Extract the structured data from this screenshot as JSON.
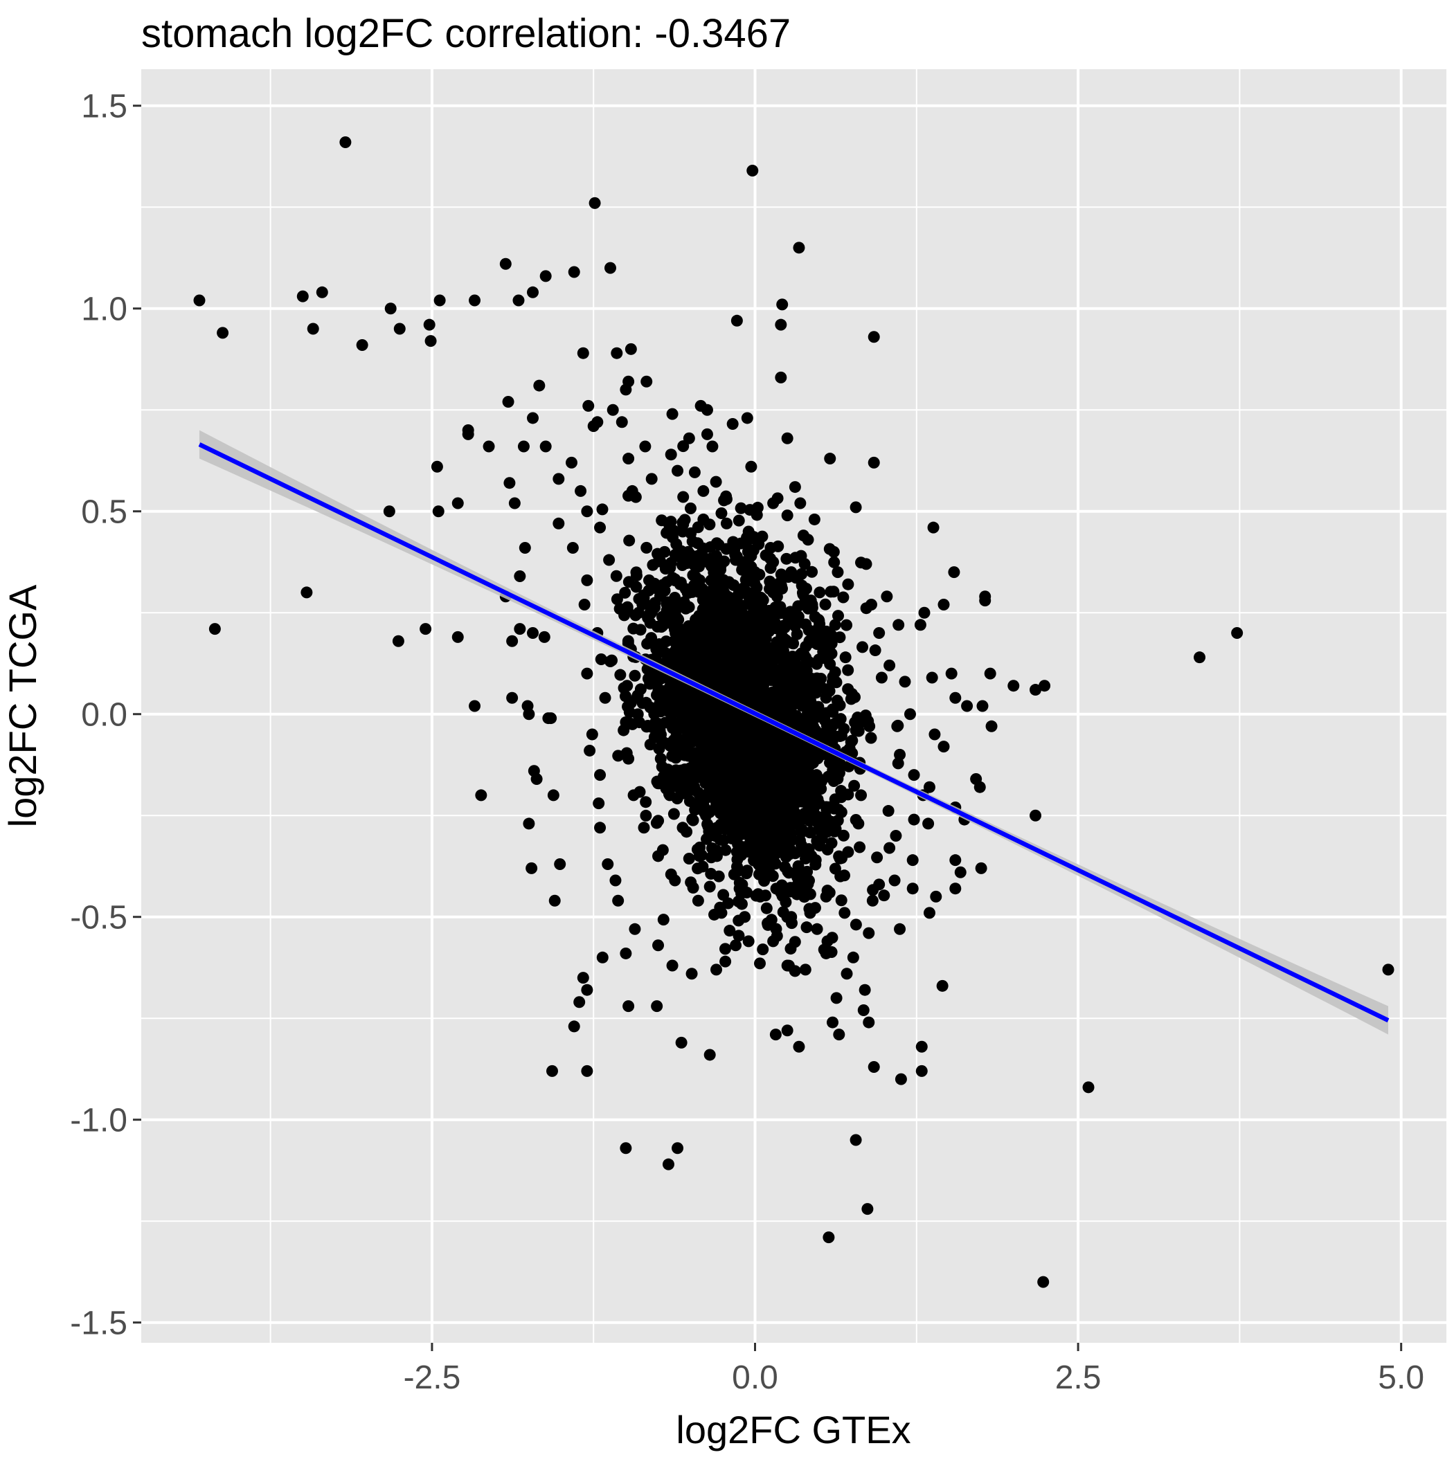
{
  "chart_data": {
    "type": "scatter",
    "title": "stomach log2FC correlation: -0.3467",
    "xlabel": "log2FC GTEx",
    "ylabel": "log2FC TCGA",
    "xlim": [
      -4.75,
      5.35
    ],
    "ylim": [
      -1.55,
      1.59
    ],
    "x_ticks": [
      -2.5,
      0.0,
      2.5,
      5.0
    ],
    "x_tick_labels": [
      "-2.5",
      "0.0",
      "2.5",
      "5.0"
    ],
    "y_ticks": [
      -1.5,
      -1.0,
      -0.5,
      0.0,
      0.5,
      1.0,
      1.5
    ],
    "y_tick_labels": [
      "-1.5",
      "-1.0",
      "-0.5",
      "0.0",
      "0.5",
      "1.0",
      "1.5"
    ],
    "grid": true,
    "colors": {
      "panel": "#e6e6e6",
      "grid": "#ffffff",
      "points": "#000000",
      "fit_line": "#0000ff",
      "ci_band": "#bfbfbf"
    },
    "regression": {
      "x_start": -4.3,
      "y_start": 0.665,
      "x_end": 4.9,
      "y_end": -0.755,
      "ci_halfwidth_end": 0.035
    },
    "points": [
      [
        -4.3,
        1.02
      ],
      [
        -4.12,
        0.94
      ],
      [
        -4.18,
        0.21
      ],
      [
        -3.5,
        1.03
      ],
      [
        -3.42,
        0.95
      ],
      [
        -3.35,
        1.04
      ],
      [
        -3.47,
        0.3
      ],
      [
        -3.17,
        1.41
      ],
      [
        -3.04,
        0.91
      ],
      [
        -2.82,
        1.0
      ],
      [
        -2.75,
        0.95
      ],
      [
        -2.52,
        0.96
      ],
      [
        -2.51,
        0.92
      ],
      [
        -2.44,
        1.02
      ],
      [
        -2.83,
        0.5
      ],
      [
        -2.76,
        0.18
      ],
      [
        -2.55,
        0.21
      ],
      [
        -2.46,
        0.61
      ],
      [
        -2.45,
        0.5
      ],
      [
        -2.3,
        0.52
      ],
      [
        -2.3,
        0.19
      ],
      [
        -2.22,
        0.7
      ],
      [
        -2.22,
        0.69
      ],
      [
        -2.17,
        1.02
      ],
      [
        -2.17,
        0.02
      ],
      [
        -2.06,
        0.66
      ],
      [
        -2.12,
        -0.2
      ],
      [
        -1.93,
        1.11
      ],
      [
        -1.83,
        1.02
      ],
      [
        -1.72,
        1.04
      ],
      [
        -1.62,
        1.08
      ],
      [
        -1.4,
        1.09
      ],
      [
        -1.24,
        1.26
      ],
      [
        -1.12,
        1.1
      ],
      [
        -1.33,
        0.89
      ],
      [
        -1.07,
        0.89
      ],
      [
        -0.96,
        0.9
      ],
      [
        -0.98,
        0.82
      ],
      [
        -0.84,
        0.82
      ],
      [
        -1.0,
        0.8
      ],
      [
        -0.02,
        1.34
      ],
      [
        0.34,
        1.15
      ],
      [
        0.21,
        1.01
      ],
      [
        -0.14,
        0.97
      ],
      [
        0.2,
        0.96
      ],
      [
        0.92,
        0.93
      ],
      [
        0.2,
        0.83
      ],
      [
        -0.06,
        0.73
      ],
      [
        0.25,
        0.68
      ],
      [
        0.58,
        0.63
      ],
      [
        0.92,
        0.62
      ],
      [
        0.78,
        0.51
      ],
      [
        1.38,
        0.46
      ],
      [
        1.54,
        0.35
      ],
      [
        1.78,
        0.29
      ],
      [
        1.78,
        0.28
      ],
      [
        1.31,
        0.25
      ],
      [
        1.46,
        0.27
      ],
      [
        1.11,
        0.22
      ],
      [
        1.28,
        0.22
      ],
      [
        1.82,
        0.1
      ],
      [
        2.0,
        0.07
      ],
      [
        2.17,
        0.06
      ],
      [
        2.24,
        0.07
      ],
      [
        1.76,
        0.02
      ],
      [
        1.83,
        -0.03
      ],
      [
        1.55,
        0.04
      ],
      [
        1.64,
        0.02
      ],
      [
        1.52,
        0.1
      ],
      [
        1.37,
        0.09
      ],
      [
        1.39,
        -0.05
      ],
      [
        1.46,
        -0.08
      ],
      [
        1.71,
        -0.16
      ],
      [
        1.74,
        -0.18
      ],
      [
        1.55,
        -0.23
      ],
      [
        1.62,
        -0.26
      ],
      [
        1.75,
        -0.38
      ],
      [
        1.55,
        -0.36
      ],
      [
        1.59,
        -0.39
      ],
      [
        1.55,
        -0.43
      ],
      [
        1.4,
        -0.45
      ],
      [
        1.35,
        -0.49
      ],
      [
        1.22,
        -0.43
      ],
      [
        1.12,
        -0.53
      ],
      [
        1.45,
        -0.67
      ],
      [
        2.17,
        -0.25
      ],
      [
        2.58,
        -0.92
      ],
      [
        3.44,
        0.14
      ],
      [
        3.73,
        0.2
      ],
      [
        4.9,
        -0.63
      ],
      [
        1.29,
        -0.82
      ],
      [
        1.29,
        -0.88
      ],
      [
        1.13,
        -0.9
      ],
      [
        0.92,
        -0.87
      ],
      [
        0.85,
        -0.68
      ],
      [
        0.84,
        -0.73
      ],
      [
        0.88,
        -0.76
      ],
      [
        0.63,
        -0.7
      ],
      [
        0.6,
        -0.76
      ],
      [
        0.65,
        -0.79
      ],
      [
        0.34,
        -0.82
      ],
      [
        0.25,
        -0.78
      ],
      [
        0.16,
        -0.79
      ],
      [
        -0.35,
        -0.84
      ],
      [
        -0.57,
        -0.81
      ],
      [
        -0.76,
        -0.72
      ],
      [
        -0.98,
        -0.72
      ],
      [
        -1.4,
        -0.77
      ],
      [
        -1.57,
        -0.88
      ],
      [
        -1.3,
        -0.88
      ],
      [
        -1.33,
        -0.65
      ],
      [
        -1.36,
        -0.71
      ],
      [
        -1.3,
        -0.68
      ],
      [
        -1.18,
        -0.6
      ],
      [
        -1.0,
        -0.59
      ],
      [
        -1.0,
        -1.07
      ],
      [
        -0.6,
        -1.07
      ],
      [
        -0.67,
        -1.11
      ],
      [
        0.78,
        -1.05
      ],
      [
        0.87,
        -1.22
      ],
      [
        0.57,
        -1.29
      ],
      [
        2.23,
        -1.4
      ],
      [
        -1.55,
        -0.46
      ],
      [
        -1.51,
        -0.37
      ],
      [
        -1.73,
        -0.38
      ],
      [
        -1.56,
        -0.2
      ],
      [
        -1.71,
        -0.14
      ],
      [
        -1.69,
        -0.16
      ],
      [
        -1.75,
        -0.27
      ],
      [
        -1.75,
        0.0
      ],
      [
        -1.88,
        0.04
      ],
      [
        -1.76,
        0.02
      ],
      [
        -1.6,
        -0.01
      ],
      [
        -1.58,
        -0.01
      ],
      [
        -1.26,
        -0.05
      ],
      [
        -1.3,
        0.1
      ],
      [
        -1.88,
        0.18
      ],
      [
        -1.82,
        0.21
      ],
      [
        -1.72,
        0.2
      ],
      [
        -1.63,
        0.19
      ],
      [
        -1.93,
        0.29
      ],
      [
        -1.82,
        0.34
      ],
      [
        -1.78,
        0.41
      ],
      [
        -1.9,
        0.57
      ],
      [
        -1.86,
        0.52
      ],
      [
        -1.91,
        0.77
      ],
      [
        -1.67,
        0.81
      ],
      [
        -1.72,
        0.73
      ],
      [
        -1.79,
        0.66
      ],
      [
        -1.62,
        0.66
      ],
      [
        -1.29,
        0.76
      ],
      [
        -1.22,
        0.72
      ],
      [
        -1.25,
        0.71
      ],
      [
        -1.1,
        0.75
      ],
      [
        -1.03,
        0.72
      ],
      [
        -0.64,
        0.74
      ],
      [
        -0.42,
        0.76
      ],
      [
        -0.37,
        0.75
      ],
      [
        -0.37,
        0.69
      ],
      [
        -0.51,
        0.68
      ],
      [
        -0.85,
        0.66
      ],
      [
        -0.98,
        0.63
      ],
      [
        -0.65,
        0.64
      ],
      [
        -0.33,
        0.66
      ],
      [
        -0.03,
        0.61
      ],
      [
        0.35,
        0.52
      ],
      [
        0.31,
        0.56
      ],
      [
        0.46,
        0.48
      ],
      [
        0.61,
        0.4
      ],
      [
        0.64,
        0.35
      ],
      [
        0.72,
        0.32
      ],
      [
        0.86,
        0.37
      ],
      [
        0.9,
        0.27
      ],
      [
        0.96,
        0.2
      ],
      [
        1.02,
        0.29
      ],
      [
        1.04,
        0.12
      ],
      [
        0.98,
        0.09
      ],
      [
        1.16,
        0.08
      ],
      [
        1.2,
        0.0
      ],
      [
        1.1,
        -0.03
      ],
      [
        1.12,
        -0.1
      ],
      [
        1.23,
        -0.15
      ],
      [
        1.35,
        -0.18
      ],
      [
        1.3,
        -0.2
      ],
      [
        1.23,
        -0.26
      ],
      [
        1.34,
        -0.27
      ],
      [
        1.22,
        -0.36
      ],
      [
        1.09,
        -0.3
      ],
      [
        1.04,
        -0.33
      ],
      [
        1.08,
        -0.41
      ],
      [
        0.96,
        -0.42
      ],
      [
        0.91,
        -0.46
      ],
      [
        0.88,
        -0.54
      ],
      [
        0.76,
        -0.6
      ],
      [
        0.71,
        -0.64
      ],
      [
        0.56,
        -0.56
      ],
      [
        0.55,
        -0.59
      ],
      [
        0.48,
        -0.53
      ],
      [
        0.39,
        -0.63
      ],
      [
        0.25,
        -0.62
      ],
      [
        0.14,
        -0.56
      ],
      [
        0.06,
        -0.58
      ],
      [
        -0.05,
        -0.56
      ],
      [
        -0.15,
        -0.57
      ],
      [
        -0.23,
        -0.61
      ],
      [
        -0.3,
        -0.63
      ],
      [
        -0.49,
        -0.64
      ],
      [
        -0.64,
        -0.62
      ],
      [
        -0.75,
        -0.57
      ],
      [
        -0.93,
        -0.53
      ],
      [
        -1.06,
        -0.46
      ],
      [
        -1.08,
        -0.41
      ],
      [
        -1.14,
        -0.37
      ],
      [
        -1.2,
        -0.28
      ],
      [
        -1.21,
        -0.22
      ],
      [
        -1.2,
        -0.15
      ],
      [
        -1.28,
        -0.09
      ],
      [
        -1.16,
        0.04
      ],
      [
        -1.12,
        0.13
      ],
      [
        -1.22,
        0.2
      ],
      [
        -1.32,
        0.27
      ],
      [
        -1.3,
        0.33
      ],
      [
        -1.41,
        0.41
      ],
      [
        -1.52,
        0.47
      ],
      [
        -1.52,
        0.58
      ],
      [
        -1.42,
        0.62
      ],
      [
        -1.35,
        0.55
      ],
      [
        -1.3,
        0.5
      ],
      [
        -1.2,
        0.46
      ],
      [
        -1.13,
        0.38
      ],
      [
        -0.95,
        0.55
      ],
      [
        -0.8,
        0.58
      ],
      [
        -0.6,
        0.6
      ],
      [
        -0.4,
        0.55
      ],
      [
        -0.22,
        0.53
      ],
      [
        0.14,
        0.52
      ],
      [
        0.25,
        0.49
      ],
      [
        0.41,
        0.43
      ],
      [
        0.5,
        0.3
      ],
      [
        0.62,
        0.22
      ],
      [
        0.7,
        0.14
      ],
      [
        0.75,
        0.05
      ],
      [
        0.78,
        -0.04
      ],
      [
        0.81,
        -0.12
      ],
      [
        0.82,
        -0.2
      ],
      [
        0.8,
        -0.27
      ],
      [
        0.72,
        -0.34
      ],
      [
        0.66,
        -0.4
      ],
      [
        0.55,
        -0.45
      ],
      [
        0.42,
        -0.48
      ],
      [
        0.28,
        -0.5
      ],
      [
        0.1,
        -0.52
      ],
      [
        -0.08,
        -0.5
      ],
      [
        -0.26,
        -0.49
      ],
      [
        -0.44,
        -0.46
      ],
      [
        -0.62,
        -0.41
      ],
      [
        -0.75,
        -0.35
      ],
      [
        -0.86,
        -0.28
      ],
      [
        -0.94,
        -0.2
      ],
      [
        -0.98,
        -0.11
      ],
      [
        -1.0,
        -0.02
      ],
      [
        -0.99,
        0.07
      ],
      [
        -0.96,
        0.16
      ],
      [
        -0.9,
        0.25
      ],
      [
        -0.82,
        0.33
      ],
      [
        -0.7,
        0.4
      ],
      [
        -0.56,
        0.45
      ],
      [
        -0.4,
        0.48
      ],
      [
        -0.22,
        0.47
      ],
      [
        -0.05,
        0.45
      ],
      [
        0.12,
        0.41
      ],
      [
        0.28,
        0.35
      ],
      [
        0.42,
        0.27
      ],
      [
        0.53,
        0.18
      ],
      [
        0.6,
        0.08
      ],
      [
        0.64,
        -0.02
      ],
      [
        0.65,
        -0.12
      ],
      [
        0.62,
        -0.21
      ],
      [
        0.56,
        -0.29
      ],
      [
        0.47,
        -0.36
      ],
      [
        0.35,
        -0.41
      ],
      [
        0.2,
        -0.44
      ],
      [
        0.04,
        -0.45
      ],
      [
        -0.12,
        -0.43
      ],
      [
        -0.28,
        -0.4
      ],
      [
        -0.43,
        -0.35
      ],
      [
        -0.56,
        -0.28
      ],
      [
        -0.66,
        -0.2
      ],
      [
        -0.73,
        -0.11
      ],
      [
        -0.77,
        -0.02
      ],
      [
        -0.77,
        0.08
      ],
      [
        -0.74,
        0.17
      ],
      [
        -0.68,
        0.25
      ],
      [
        -0.58,
        0.32
      ],
      [
        -0.45,
        0.37
      ],
      [
        -0.3,
        0.39
      ],
      [
        -0.15,
        0.38
      ],
      [
        0.0,
        0.35
      ],
      [
        0.14,
        0.3
      ],
      [
        0.26,
        0.23
      ],
      [
        0.36,
        0.15
      ],
      [
        0.42,
        0.06
      ],
      [
        0.45,
        -0.03
      ],
      [
        0.45,
        -0.12
      ],
      [
        0.41,
        -0.2
      ],
      [
        0.34,
        -0.27
      ],
      [
        0.24,
        -0.32
      ],
      [
        0.12,
        -0.35
      ],
      [
        -0.01,
        -0.36
      ],
      [
        -0.14,
        -0.34
      ],
      [
        -0.27,
        -0.31
      ],
      [
        -0.38,
        -0.25
      ],
      [
        -0.47,
        -0.18
      ],
      [
        -0.53,
        -0.1
      ],
      [
        -0.56,
        -0.01
      ],
      [
        -0.56,
        0.08
      ],
      [
        -0.52,
        0.16
      ],
      [
        -0.45,
        0.23
      ],
      [
        -0.35,
        0.28
      ],
      [
        -0.24,
        0.3
      ],
      [
        -0.12,
        0.3
      ],
      [
        0.0,
        0.27
      ],
      [
        0.1,
        0.22
      ],
      [
        0.18,
        0.15
      ],
      [
        0.23,
        0.07
      ],
      [
        0.25,
        -0.02
      ],
      [
        0.23,
        -0.1
      ],
      [
        0.18,
        -0.17
      ],
      [
        0.1,
        -0.22
      ],
      [
        0.0,
        -0.25
      ],
      [
        -0.1,
        -0.25
      ],
      [
        -0.2,
        -0.22
      ],
      [
        -0.28,
        -0.16
      ],
      [
        -0.33,
        -0.08
      ],
      [
        -0.35,
        0.0
      ],
      [
        -0.33,
        0.09
      ],
      [
        -0.27,
        0.16
      ],
      [
        -0.18,
        0.2
      ],
      [
        -0.08,
        0.2
      ],
      [
        0.02,
        0.16
      ],
      [
        0.08,
        0.09
      ],
      [
        0.1,
        0.0
      ],
      [
        0.06,
        -0.09
      ],
      [
        -0.02,
        -0.14
      ],
      [
        -0.12,
        -0.12
      ],
      [
        -0.18,
        -0.04
      ],
      [
        -0.15,
        0.06
      ],
      [
        -0.05,
        0.07
      ],
      [
        -0.06,
        -0.03
      ]
    ],
    "dense_cluster": {
      "center": [
        -0.08,
        0.0
      ],
      "sd": [
        0.36,
        0.19
      ],
      "count": 2600,
      "seed": 17
    }
  }
}
